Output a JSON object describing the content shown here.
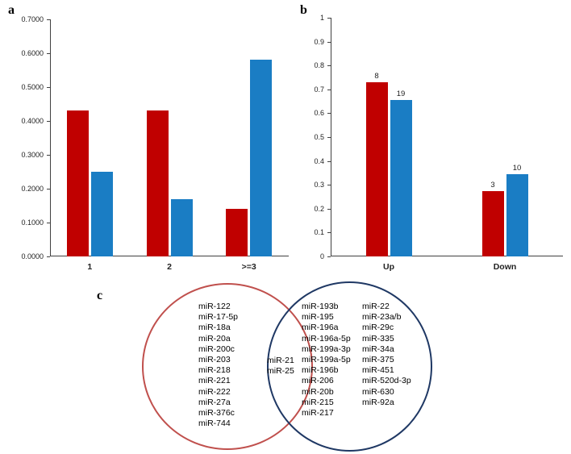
{
  "panels": {
    "a": {
      "label": "a"
    },
    "b": {
      "label": "b"
    },
    "c": {
      "label": "c"
    }
  },
  "colors": {
    "series_red": "#C00000",
    "series_blue": "#1A7DC4",
    "venn_left_stroke": "#C0504D",
    "venn_right_stroke": "#1F3864"
  },
  "chart_data": [
    {
      "id": "a",
      "type": "bar",
      "title": "",
      "categories": [
        "1",
        "2",
        ">=3"
      ],
      "series": [
        {
          "name": "red",
          "color": "#C00000",
          "values": [
            0.43,
            0.43,
            0.14
          ]
        },
        {
          "name": "blue",
          "color": "#1A7DC4",
          "values": [
            0.25,
            0.17,
            0.58
          ]
        }
      ],
      "ylim": [
        0,
        0.7
      ],
      "ytick_labels": [
        "0.0000",
        "0.1000",
        "0.2000",
        "0.3000",
        "0.4000",
        "0.5000",
        "0.6000",
        "0.7000"
      ],
      "xlabel": "",
      "ylabel": "",
      "grid": false,
      "legend": "none"
    },
    {
      "id": "b",
      "type": "bar",
      "title": "",
      "categories": [
        "Up",
        "Down"
      ],
      "series": [
        {
          "name": "red",
          "color": "#C00000",
          "values": [
            0.73,
            0.275
          ],
          "labels": [
            "8",
            "3"
          ]
        },
        {
          "name": "blue",
          "color": "#1A7DC4",
          "values": [
            0.655,
            0.345
          ],
          "labels": [
            "19",
            "10"
          ]
        }
      ],
      "ylim": [
        0,
        1
      ],
      "ytick_labels": [
        "0",
        "0.1",
        "0.2",
        "0.3",
        "0.4",
        "0.5",
        "0.6",
        "0.7",
        "0.8",
        "0.9",
        "1"
      ],
      "xlabel": "",
      "ylabel": "",
      "grid": false,
      "legend": "none"
    },
    {
      "id": "c",
      "type": "venn",
      "left_only": [
        "miR-122",
        "miR-17-5p",
        "miR-18a",
        "miR-20a",
        "miR-200c",
        "miR-203",
        "miR-218",
        "miR-221",
        "miR-222",
        "miR-27a",
        "miR-376c",
        "miR-744"
      ],
      "intersection": [
        "miR-21",
        "miR-25"
      ],
      "right_only_col1": [
        "miR-193b",
        "miR-195",
        "miR-196a",
        "miR-196a-5p",
        "miR-199a-3p",
        "miR-199a-5p",
        "miR-196b",
        "miR-206",
        "miR-20b",
        "miR-215",
        "miR-217"
      ],
      "right_only_col2": [
        "miR-22",
        "miR-23a/b",
        "miR-29c",
        "miR-335",
        "miR-34a",
        "miR-375",
        "miR-451",
        "miR-520d-3p",
        "miR-630",
        "miR-92a"
      ]
    }
  ]
}
